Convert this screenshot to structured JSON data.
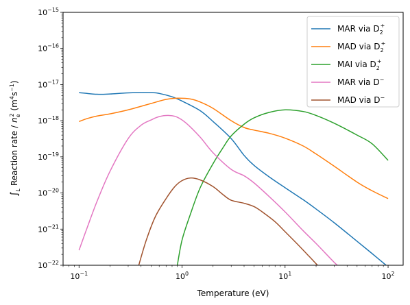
{
  "chart_data": {
    "type": "line",
    "xlabel": "Temperature (eV)",
    "ylabel_parts": [
      "∫",
      "L",
      " Reaction rate / ",
      "n",
      "e",
      "2",
      " (m",
      "4",
      "s",
      "−1",
      ")"
    ],
    "xscale": "log",
    "yscale": "log",
    "xlim": [
      0.07,
      140
    ],
    "ylim": [
      1e-22,
      1e-15
    ],
    "x_ticks": [
      {
        "value": 0.1,
        "base": "10",
        "exp": "−1"
      },
      {
        "value": 1,
        "base": "10",
        "exp": "0"
      },
      {
        "value": 10,
        "base": "10",
        "exp": "1"
      },
      {
        "value": 100,
        "base": "10",
        "exp": "2"
      }
    ],
    "y_ticks": [
      {
        "value": 1e-22,
        "base": "10",
        "exp": "−22"
      },
      {
        "value": 1e-21,
        "base": "10",
        "exp": "−21"
      },
      {
        "value": 1e-20,
        "base": "10",
        "exp": "−20"
      },
      {
        "value": 1e-19,
        "base": "10",
        "exp": "−19"
      },
      {
        "value": 1e-18,
        "base": "10",
        "exp": "−18"
      },
      {
        "value": 1e-17,
        "base": "10",
        "exp": "−17"
      },
      {
        "value": 1e-16,
        "base": "10",
        "exp": "−16"
      },
      {
        "value": 1e-15,
        "base": "10",
        "exp": "−15"
      }
    ],
    "grid": false,
    "legend_position": "top-right",
    "series": [
      {
        "name": "MAR via D2+",
        "label_main": "MAR via D",
        "label_sub": "2",
        "label_sup": "+",
        "color": "#1f77b4",
        "points": [
          [
            0.1,
            6e-18
          ],
          [
            0.15,
            5.4e-18
          ],
          [
            0.2,
            5.5e-18
          ],
          [
            0.3,
            5.9e-18
          ],
          [
            0.5,
            6e-18
          ],
          [
            0.6,
            5.7e-18
          ],
          [
            0.8,
            4.6e-18
          ],
          [
            1,
            3.5e-18
          ],
          [
            1.5,
            1.9e-18
          ],
          [
            2,
            9.5e-19
          ],
          [
            3,
            3.2e-19
          ],
          [
            4,
            1.1e-19
          ],
          [
            5,
            5.8e-20
          ],
          [
            7,
            2.8e-20
          ],
          [
            10,
            1.4e-20
          ],
          [
            15,
            6.5e-21
          ],
          [
            20,
            3.6e-21
          ],
          [
            30,
            1.5e-21
          ],
          [
            50,
            4.6e-22
          ],
          [
            70,
            2.1e-22
          ],
          [
            100,
            9e-23
          ]
        ]
      },
      {
        "name": "MAD via D2+",
        "label_main": "MAD via D",
        "label_sub": "2",
        "label_sup": "+",
        "color": "#ff7f0e",
        "points": [
          [
            0.1,
            9.5e-19
          ],
          [
            0.12,
            1.15e-18
          ],
          [
            0.15,
            1.35e-18
          ],
          [
            0.2,
            1.55e-18
          ],
          [
            0.3,
            2e-18
          ],
          [
            0.5,
            3e-18
          ],
          [
            0.7,
            3.9e-18
          ],
          [
            0.9,
            4.2e-18
          ],
          [
            1.2,
            4e-18
          ],
          [
            1.5,
            3.3e-18
          ],
          [
            2,
            2.2e-18
          ],
          [
            3,
            1e-18
          ],
          [
            4,
            6.5e-19
          ],
          [
            5,
            5.5e-19
          ],
          [
            7,
            4.5e-19
          ],
          [
            10,
            3.3e-19
          ],
          [
            15,
            2e-19
          ],
          [
            20,
            1.2e-19
          ],
          [
            30,
            5.5e-20
          ],
          [
            50,
            2e-20
          ],
          [
            70,
            1.15e-20
          ],
          [
            100,
            7e-21
          ]
        ]
      },
      {
        "name": "MAI via D2+",
        "label_main": "MAI via D",
        "label_sub": "2",
        "label_sup": "+",
        "color": "#2ca02c",
        "points": [
          [
            0.9,
            1e-22
          ],
          [
            1,
            5e-22
          ],
          [
            1.2,
            2.5e-21
          ],
          [
            1.5,
            1.4e-20
          ],
          [
            2,
            6.5e-20
          ],
          [
            2.5,
            1.8e-19
          ],
          [
            3,
            3.8e-19
          ],
          [
            4,
            8e-19
          ],
          [
            5,
            1.2e-18
          ],
          [
            7,
            1.7e-18
          ],
          [
            10,
            2e-18
          ],
          [
            15,
            1.8e-18
          ],
          [
            20,
            1.4e-18
          ],
          [
            30,
            8.5e-19
          ],
          [
            50,
            4e-19
          ],
          [
            70,
            2.3e-19
          ],
          [
            100,
            8e-20
          ]
        ]
      },
      {
        "name": "MAR via D−",
        "label_main": "MAR via D",
        "label_sub": "",
        "label_sup": "−",
        "color": "#e377c2",
        "points": [
          [
            0.1,
            2.6e-22
          ],
          [
            0.12,
            1.1e-21
          ],
          [
            0.15,
            6e-21
          ],
          [
            0.2,
            4e-20
          ],
          [
            0.3,
            3.2e-19
          ],
          [
            0.4,
            7.5e-19
          ],
          [
            0.5,
            1.05e-18
          ],
          [
            0.6,
            1.3e-18
          ],
          [
            0.75,
            1.4e-18
          ],
          [
            0.9,
            1.25e-18
          ],
          [
            1.1,
            8.5e-19
          ],
          [
            1.5,
            3.5e-19
          ],
          [
            2,
            1.3e-19
          ],
          [
            3,
            4.5e-20
          ],
          [
            4,
            3e-20
          ],
          [
            5,
            1.9e-20
          ],
          [
            7,
            8e-21
          ],
          [
            10,
            3e-21
          ],
          [
            15,
            9e-22
          ],
          [
            20,
            4e-22
          ],
          [
            30,
            1.2e-22
          ],
          [
            33,
            9.5e-23
          ]
        ]
      },
      {
        "name": "MAD via D−",
        "label_main": "MAD via D",
        "label_sub": "",
        "label_sup": "−",
        "color": "#a0522d",
        "points": [
          [
            0.38,
            1e-22
          ],
          [
            0.45,
            5e-22
          ],
          [
            0.55,
            2.2e-21
          ],
          [
            0.7,
            7e-21
          ],
          [
            0.85,
            1.5e-20
          ],
          [
            1,
            2.2e-20
          ],
          [
            1.2,
            2.6e-20
          ],
          [
            1.5,
            2.3e-20
          ],
          [
            2,
            1.5e-20
          ],
          [
            2.5,
            9e-21
          ],
          [
            3,
            6.3e-21
          ],
          [
            4,
            5.2e-21
          ],
          [
            5,
            4.2e-21
          ],
          [
            6,
            3e-21
          ],
          [
            8,
            1.6e-21
          ],
          [
            10,
            8.5e-22
          ],
          [
            13,
            4e-22
          ],
          [
            17,
            1.8e-22
          ],
          [
            20,
            1.1e-22
          ],
          [
            21,
            9.5e-23
          ]
        ]
      }
    ]
  }
}
